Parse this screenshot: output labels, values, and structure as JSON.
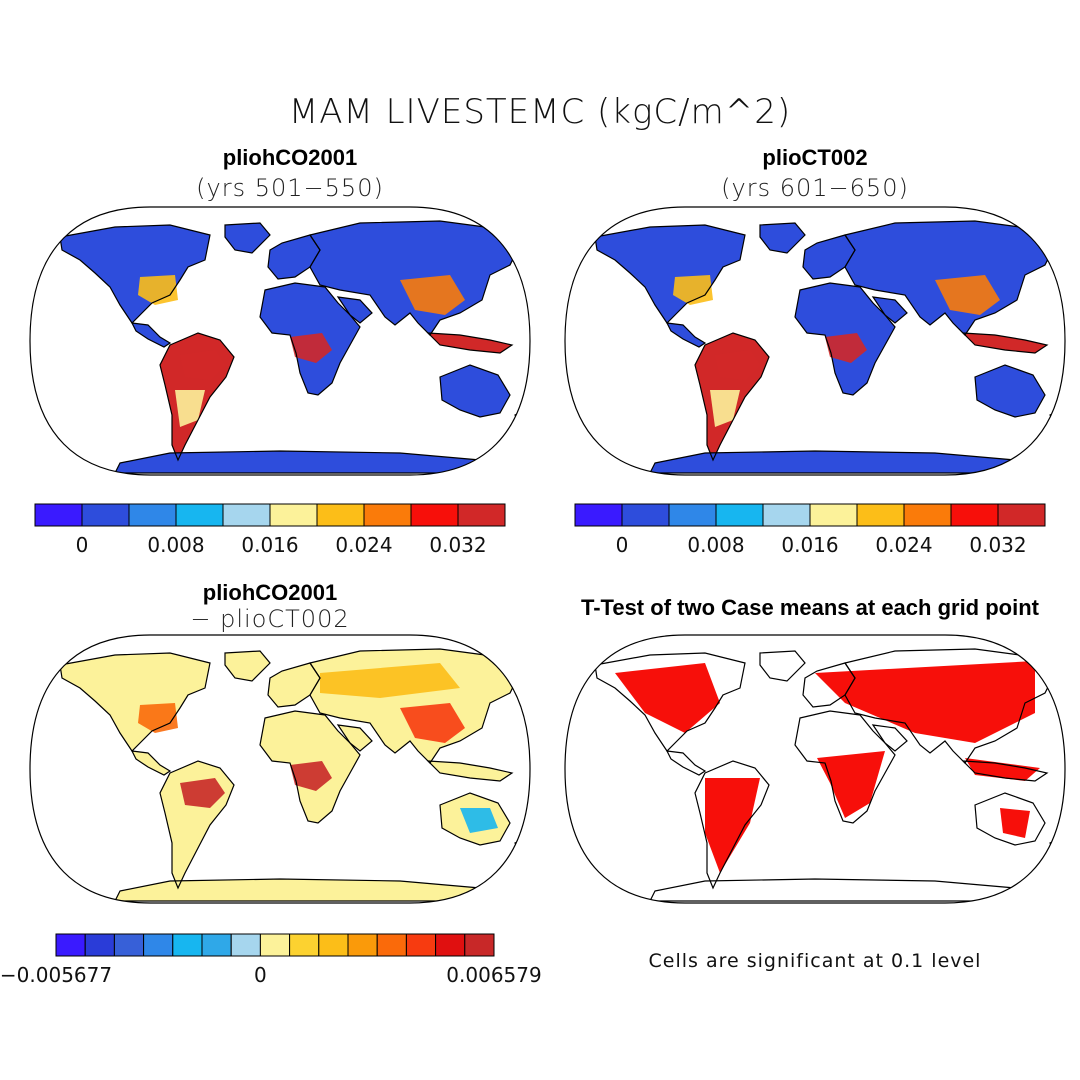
{
  "title": "MAM LIVESTEMC (kgC/m^2)",
  "panels": {
    "a": {
      "title": "pliohCO2001",
      "subtitle": "(yrs 501−550)"
    },
    "b": {
      "title": "plioCT002",
      "subtitle": "(yrs 601−650)"
    },
    "c": {
      "title": "pliohCO2001",
      "subtitle": "− plioCT002"
    },
    "d": {
      "title": "T-Test of two Case means at each grid point",
      "footnote": "Cells are significant at 0.1 level"
    }
  },
  "colorbar_abs": {
    "colors": [
      "#3a1aff",
      "#2e4ddc",
      "#2f87e8",
      "#17b6f0",
      "#a6d6ee",
      "#fcf29a",
      "#fcbe18",
      "#fa7b0a",
      "#f70f0a",
      "#d12828"
    ],
    "tick_labels": [
      "0",
      "0.008",
      "0.016",
      "0.024",
      "0.032"
    ]
  },
  "colorbar_diff": {
    "colors": [
      "#3a1aff",
      "#2a3cd8",
      "#3760d8",
      "#2f87e8",
      "#17b6f0",
      "#2fa8e8",
      "#a6d6ee",
      "#fcf29a",
      "#fcd230",
      "#fcbe18",
      "#fa9a0a",
      "#fa6a0a",
      "#f73b10",
      "#e01010",
      "#c82828"
    ],
    "tick_labels": [
      "−0.005677",
      "0",
      "0.006579"
    ]
  },
  "map_colors": {
    "land_low": "#2e4ddc",
    "tropics_high": "#d12828",
    "mid": "#fcbe18",
    "diff_neutral": "#fcf29a",
    "significant": "#f70f0a",
    "outline": "#000000"
  }
}
